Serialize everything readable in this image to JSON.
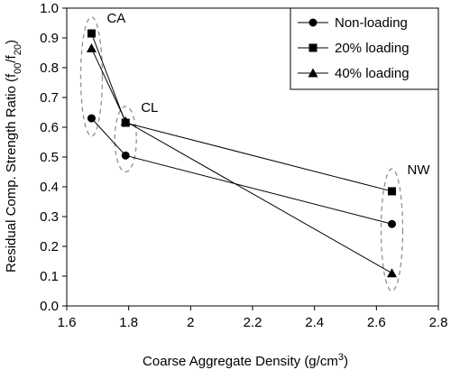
{
  "chart_data": {
    "type": "line",
    "xlabel": "Coarse Aggregate Density (g/cm",
    "xlabel_sup": "3",
    "xlabel_end": ")",
    "ylabel": "Residual Comp. Strength Ratio (f",
    "ylabel_sub1": "00",
    "ylabel_mid": "/f",
    "ylabel_sub2": "20",
    "ylabel_end": ")",
    "xlim": [
      1.6,
      2.8
    ],
    "ylim": [
      0.0,
      1.0
    ],
    "xticks": [
      "1.6",
      "1.8",
      "2",
      "2.2",
      "2.4",
      "2.6",
      "2.8"
    ],
    "yticks": [
      "0.0",
      "0.1",
      "0.2",
      "0.3",
      "0.4",
      "0.5",
      "0.6",
      "0.7",
      "0.8",
      "0.9",
      "1.0"
    ],
    "grid": false,
    "legend_position": "top-right",
    "series": [
      {
        "name": "Non-loading",
        "marker": "circle",
        "x": [
          1.68,
          1.79,
          2.65
        ],
        "y": [
          0.63,
          0.505,
          0.275
        ]
      },
      {
        "name": "20% loading",
        "marker": "square",
        "x": [
          1.68,
          1.79,
          2.65
        ],
        "y": [
          0.915,
          0.615,
          0.385
        ]
      },
      {
        "name": "40% loading",
        "marker": "triangle",
        "x": [
          1.68,
          1.79,
          2.65
        ],
        "y": [
          0.865,
          0.62,
          0.11
        ]
      }
    ],
    "groups": [
      {
        "label": "CA",
        "x": 1.68,
        "y_min": 0.57,
        "y_max": 0.97
      },
      {
        "label": "CL",
        "x": 1.79,
        "y_min": 0.45,
        "y_max": 0.67
      },
      {
        "label": "NW",
        "x": 2.65,
        "y_min": 0.05,
        "y_max": 0.46
      }
    ],
    "colors": {
      "series": "#000000",
      "group_ellipse": "#909090"
    }
  }
}
